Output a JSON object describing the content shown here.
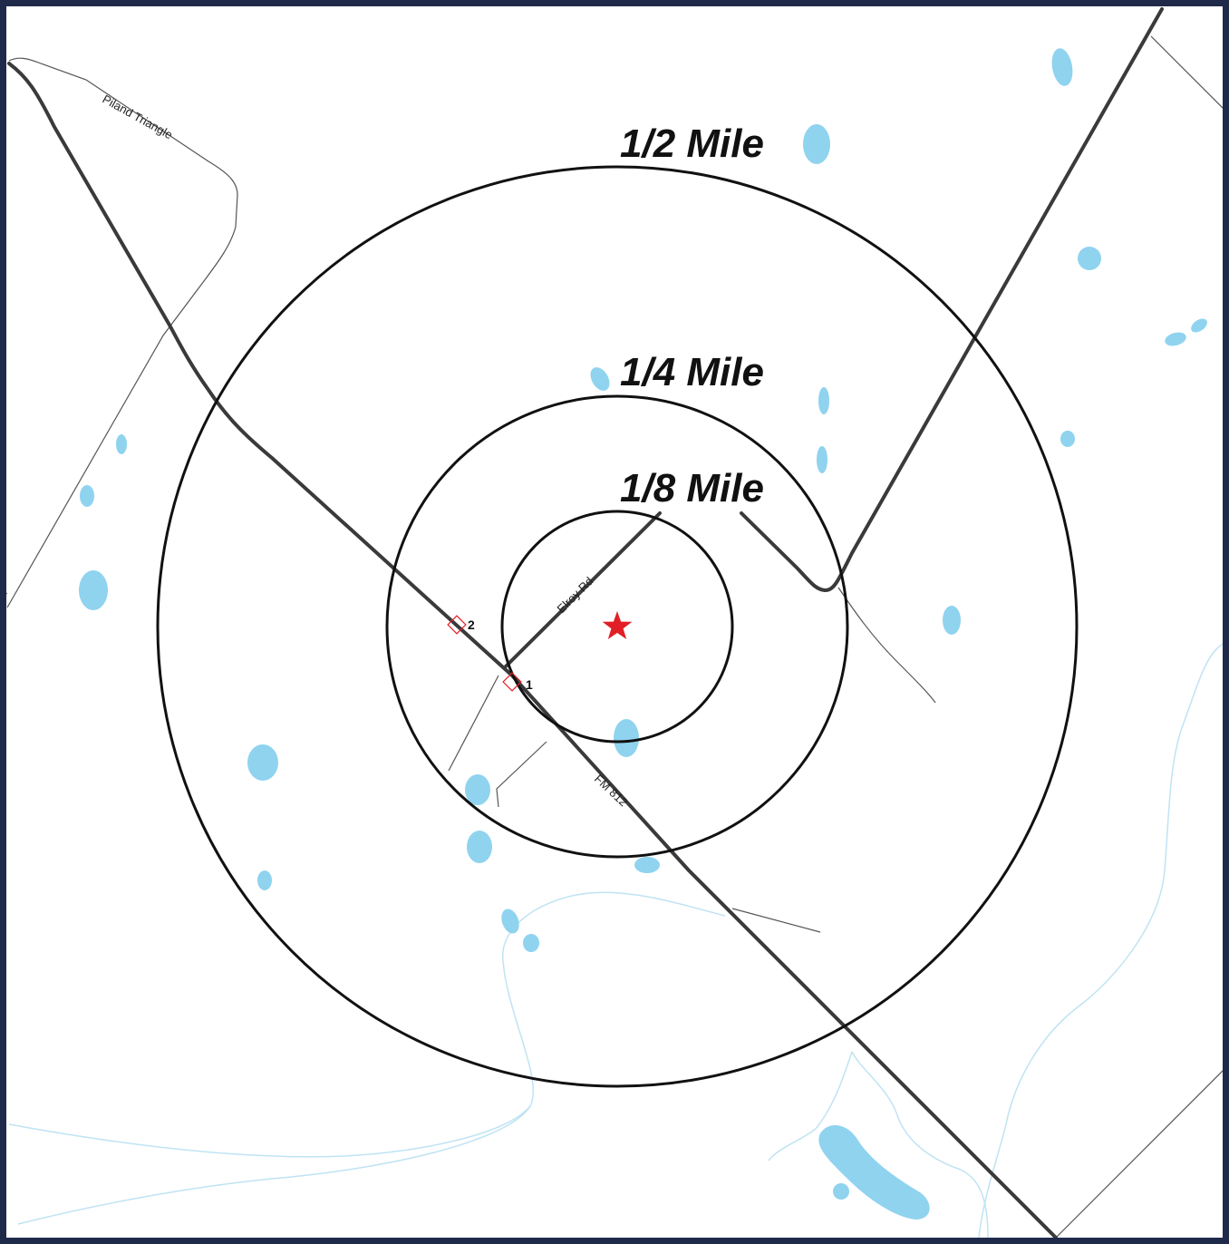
{
  "map": {
    "colors": {
      "frame": "#1f2a4a",
      "water": "#8fd3ef",
      "stream": "#bfe3f3",
      "road_major": "#3a3a3a",
      "road_minor": "#555555",
      "ring": "#111111",
      "target": "#e11f26",
      "site_marker": "#e11f26"
    },
    "rings": [
      {
        "label": "1/2 Mile"
      },
      {
        "label": "1/4 Mile"
      },
      {
        "label": "1/8 Mile"
      }
    ],
    "roads": {
      "piland": "Piland Triangle",
      "elroy": "Elroy Rd",
      "fm812": "FM 812",
      "edge_fragment": "Rd"
    },
    "sites": [
      {
        "label": "1"
      },
      {
        "label": "2"
      }
    ],
    "target_icon": "star-icon"
  }
}
